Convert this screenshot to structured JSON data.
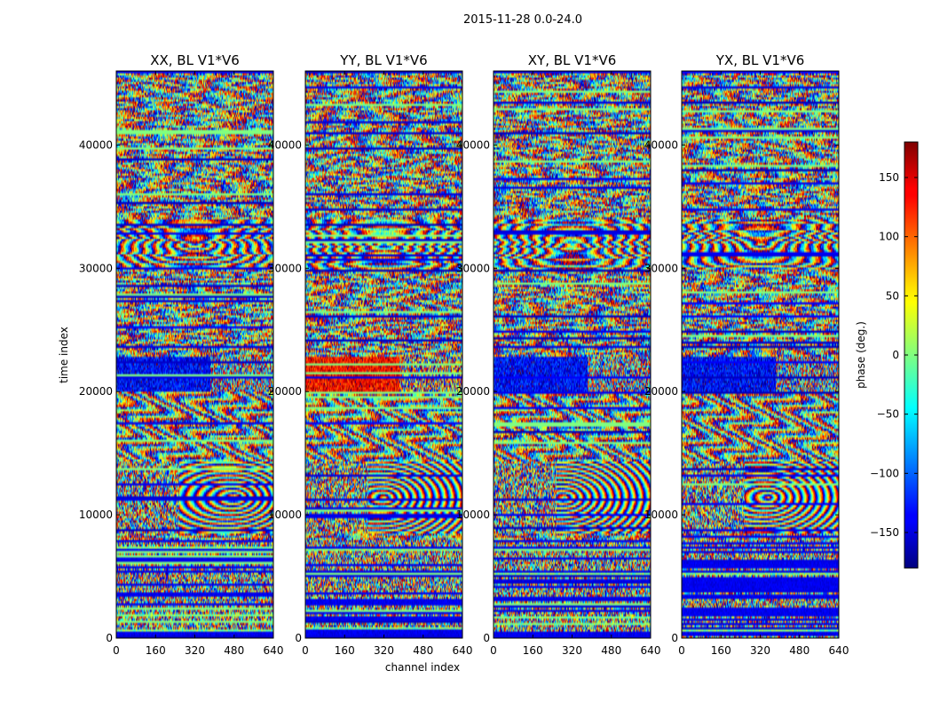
{
  "chart_data": {
    "type": "heatmap",
    "suptitle": "2015-11-28 0.0-24.0",
    "xlabel": "channel index",
    "ylabel": "time index",
    "xlim": [
      0,
      640
    ],
    "ylim": [
      0,
      46000
    ],
    "xticks": [
      "0",
      "160",
      "320",
      "480",
      "640"
    ],
    "yticks": [
      "0",
      "10000",
      "20000",
      "30000",
      "40000"
    ],
    "panels": [
      {
        "title": "XX, BL V1*V6"
      },
      {
        "title": "YY, BL V1*V6"
      },
      {
        "title": "XY, BL V1*V6"
      },
      {
        "title": "YX, BL V1*V6"
      }
    ],
    "colormap": "jet",
    "colorbar": {
      "label": "phase (deg.)",
      "range": [
        -180,
        180
      ],
      "ticks": [
        "150",
        "100",
        "50",
        "0",
        "−50",
        "−100",
        "−150"
      ]
    }
  }
}
